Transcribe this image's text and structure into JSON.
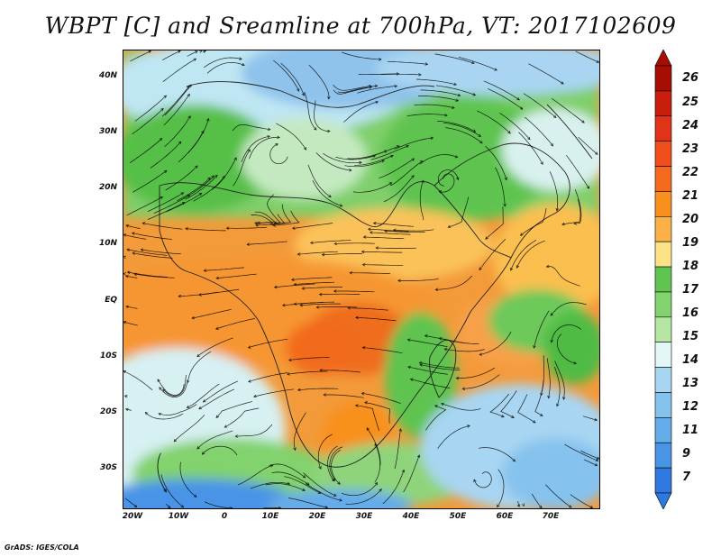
{
  "title": "WBPT [C] and Sreamline at 700hPa, VT: 2017102609",
  "lat_labels": [
    "40N",
    "30N",
    "20N",
    "10N",
    "EQ",
    "10S",
    "20S",
    "30S"
  ],
  "lon_labels": [
    "20W",
    "10W",
    "0",
    "10E",
    "20E",
    "30E",
    "40E",
    "50E",
    "60E",
    "70E"
  ],
  "colorbar": {
    "labels": [
      "26",
      "25",
      "24",
      "23",
      "22",
      "21",
      "20",
      "19",
      "18",
      "17",
      "16",
      "15",
      "14",
      "13",
      "12",
      "11",
      "9",
      "7"
    ],
    "colors": [
      "#a50d05",
      "#c81e0e",
      "#e1331a",
      "#ef4e1c",
      "#f56a1e",
      "#f8901f",
      "#fbb048",
      "#fde287",
      "#5fc450",
      "#82d26d",
      "#b5e6a4",
      "#e2f6f6",
      "#a8d5f2",
      "#86c2ee",
      "#65acea",
      "#4a94e6",
      "#2f78df"
    ],
    "arrow_top": "#a50d05",
    "arrow_bottom": "#2f78df"
  },
  "footer": "GrADS: IGES/COLA"
}
